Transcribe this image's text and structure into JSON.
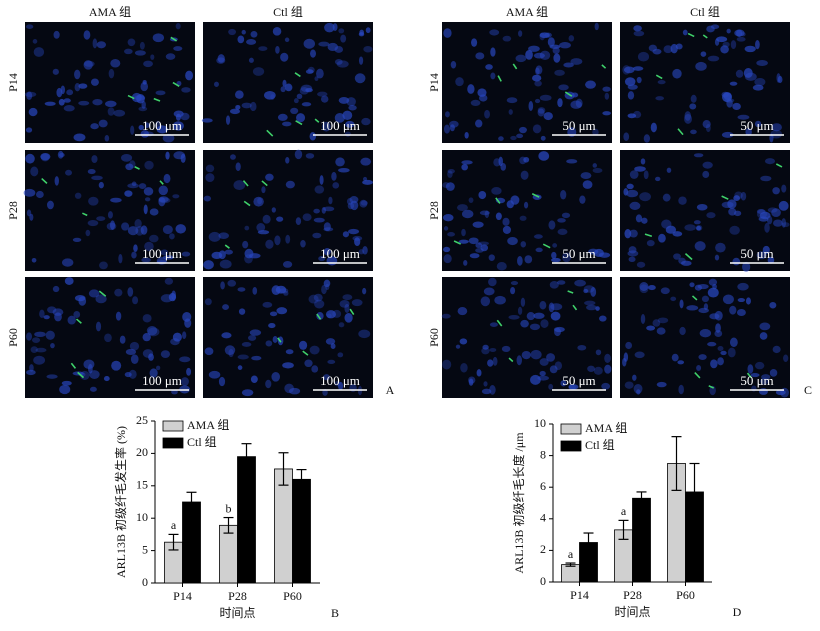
{
  "figure_panels": [
    {
      "letter": "A",
      "columns": [
        "AMA 组",
        "Ctl 组"
      ],
      "rows": [
        "P14",
        "P28",
        "P60"
      ],
      "scale_bar": "100 μm"
    },
    {
      "letter": "C",
      "columns": [
        "AMA 组",
        "Ctl 组"
      ],
      "rows": [
        "P14",
        "P28",
        "P60"
      ],
      "scale_bar": "50 μm"
    }
  ],
  "chart_data": [
    {
      "type": "bar",
      "label": "B",
      "ylabel": "ARL13B 初级纤毛发生率 (%)",
      "xlabel": "时间点",
      "categories": [
        "P14",
        "P28",
        "P60"
      ],
      "series": [
        {
          "name": "AMA 组",
          "color": "#d0d0d0",
          "values": [
            6.3,
            8.9,
            17.6
          ],
          "errors": [
            1.2,
            1.2,
            2.5
          ],
          "annotations": [
            "a",
            "b",
            null
          ]
        },
        {
          "name": "Ctl 组",
          "color": "#000000",
          "values": [
            12.5,
            19.5,
            16
          ],
          "errors": [
            1.5,
            2,
            1.5
          ]
        }
      ],
      "ylim": [
        0,
        25
      ],
      "yticks": [
        0,
        5,
        10,
        15,
        20,
        25
      ],
      "legend": "upper-left"
    },
    {
      "type": "bar",
      "label": "D",
      "ylabel": "ARL13B 初级纤毛长度 /μm",
      "xlabel": "时间点",
      "categories": [
        "P14",
        "P28",
        "P60"
      ],
      "series": [
        {
          "name": "AMA 组",
          "color": "#d0d0d0",
          "values": [
            1.1,
            3.3,
            7.5
          ],
          "errors": [
            0.1,
            0.6,
            1.7
          ],
          "annotations": [
            "a",
            "a",
            null
          ]
        },
        {
          "name": "Ctl 组",
          "color": "#000000",
          "values": [
            2.5,
            5.3,
            5.7
          ],
          "errors": [
            0.6,
            0.4,
            1.8
          ]
        }
      ],
      "ylim": [
        0,
        10
      ],
      "yticks": [
        0,
        2,
        4,
        6,
        8,
        10
      ],
      "legend": "upper-left"
    }
  ]
}
